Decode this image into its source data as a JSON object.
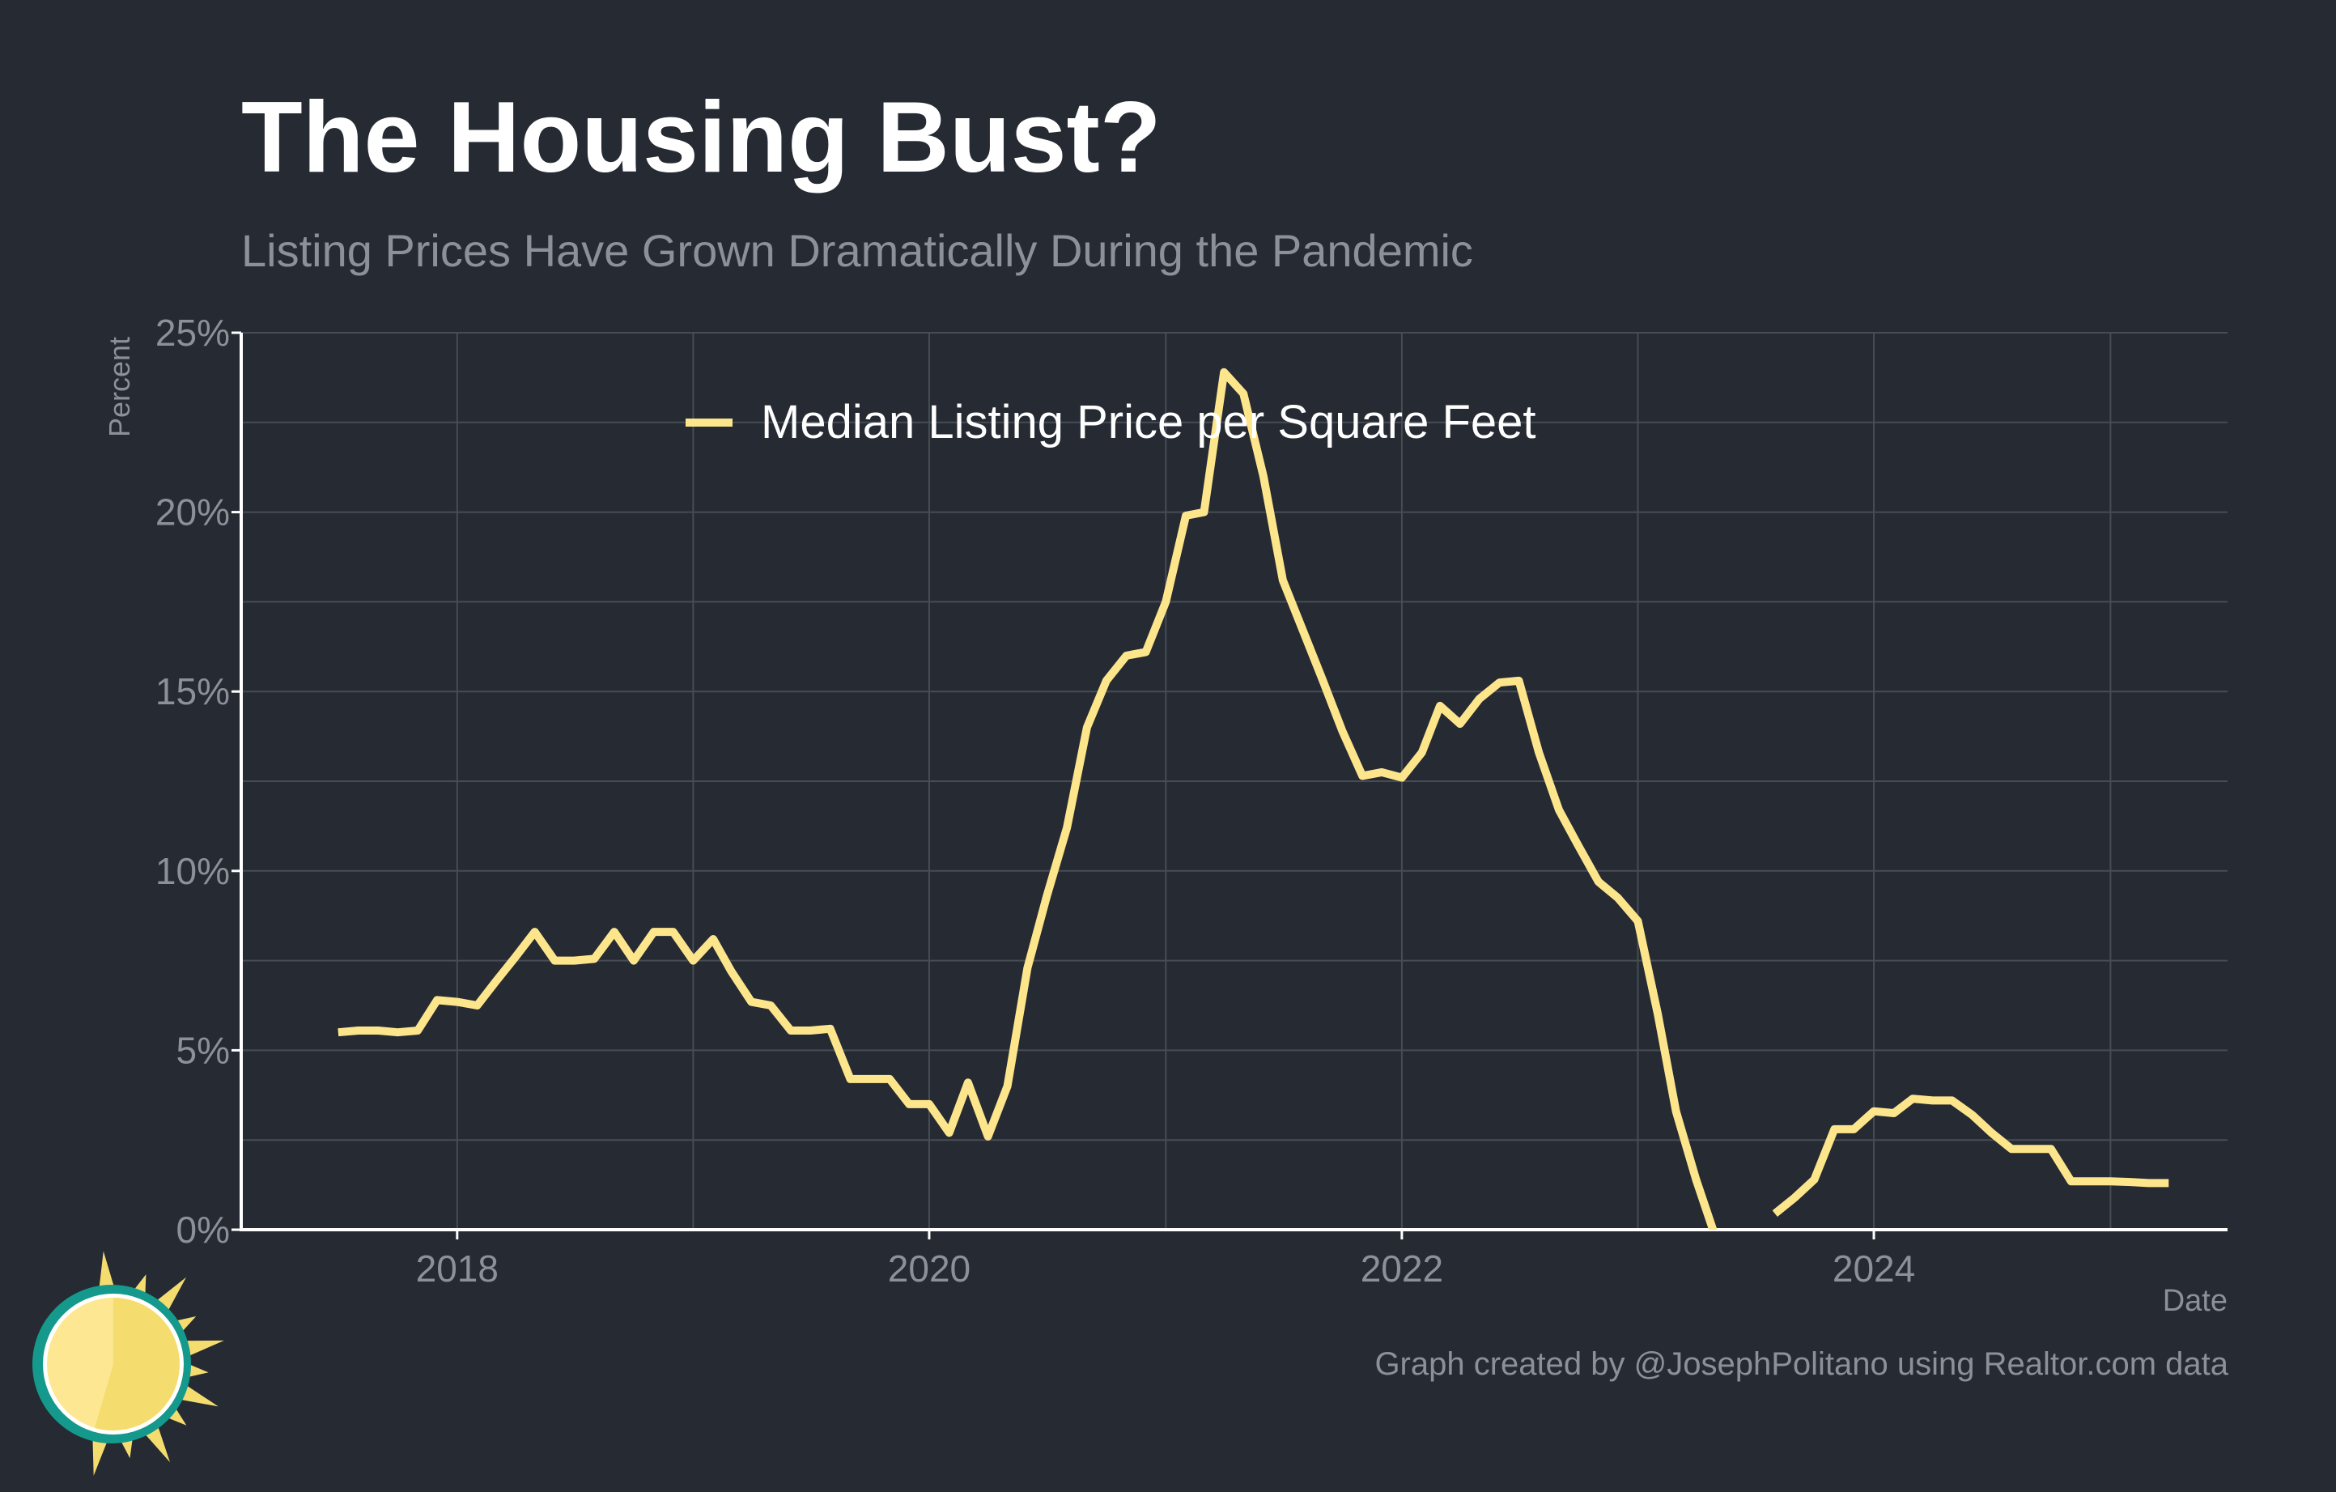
{
  "title": "The Housing Bust?",
  "subtitle": "Listing Prices Have Grown Dramatically During the Pandemic",
  "caption": "Graph created by @JosephPolitano using Realtor.com data",
  "colors": {
    "background": "#252a33",
    "line": "#fde58c",
    "grid": "#474c55",
    "axis": "#ffffff",
    "muted_text": "#8c9099",
    "logo_teal": "#14998c",
    "logo_sun": "#f5dc6e",
    "logo_sun_light": "#fde792"
  },
  "logo_icon": "sun-logo-icon",
  "chart_data": {
    "type": "line",
    "title": "The Housing Bust?",
    "subtitle": "Listing Prices Have Grown Dramatically During the Pandemic",
    "xlabel": "Date",
    "ylabel": "Percent",
    "xlim": [
      "2017-02-01",
      "2025-07-01"
    ],
    "ylim": [
      0,
      25
    ],
    "y_ticks": [
      0,
      5,
      10,
      15,
      20,
      25
    ],
    "y_tick_labels": [
      "0%",
      "5%",
      "10%",
      "15%",
      "20%",
      "25%"
    ],
    "x_ticks": [
      "2018-01-01",
      "2020-01-01",
      "2022-01-01",
      "2024-01-01"
    ],
    "x_tick_labels": [
      "2018",
      "2020",
      "2022",
      "2024"
    ],
    "grid": true,
    "legend_position": "top-center",
    "series": [
      {
        "name": "Median Listing Price per Square Feet",
        "color": "#fde58c",
        "points": [
          [
            "2017-07-01",
            5.5
          ],
          [
            "2017-08-01",
            5.55
          ],
          [
            "2017-09-01",
            5.55
          ],
          [
            "2017-10-01",
            5.5
          ],
          [
            "2017-11-01",
            5.55
          ],
          [
            "2017-12-01",
            6.4
          ],
          [
            "2018-01-01",
            6.35
          ],
          [
            "2018-02-01",
            6.25
          ],
          [
            "2018-03-01",
            6.9
          ],
          [
            "2018-04-01",
            7.6
          ],
          [
            "2018-05-01",
            8.3
          ],
          [
            "2018-06-01",
            7.5
          ],
          [
            "2018-07-01",
            7.5
          ],
          [
            "2018-08-01",
            7.55
          ],
          [
            "2018-09-01",
            8.3
          ],
          [
            "2018-10-01",
            7.5
          ],
          [
            "2018-11-01",
            8.3
          ],
          [
            "2018-12-01",
            8.3
          ],
          [
            "2019-01-01",
            7.5
          ],
          [
            "2019-02-01",
            8.1
          ],
          [
            "2019-03-01",
            7.2
          ],
          [
            "2019-04-01",
            6.35
          ],
          [
            "2019-05-01",
            6.25
          ],
          [
            "2019-06-01",
            5.55
          ],
          [
            "2019-07-01",
            5.55
          ],
          [
            "2019-08-01",
            5.6
          ],
          [
            "2019-09-01",
            4.2
          ],
          [
            "2019-10-01",
            4.2
          ],
          [
            "2019-11-01",
            4.2
          ],
          [
            "2019-12-01",
            3.5
          ],
          [
            "2020-01-01",
            3.5
          ],
          [
            "2020-02-01",
            2.7
          ],
          [
            "2020-03-01",
            4.1
          ],
          [
            "2020-04-01",
            2.6
          ],
          [
            "2020-05-01",
            4.0
          ],
          [
            "2020-06-01",
            7.3
          ],
          [
            "2020-07-01",
            9.3
          ],
          [
            "2020-08-01",
            11.2
          ],
          [
            "2020-09-01",
            14.0
          ],
          [
            "2020-10-01",
            15.3
          ],
          [
            "2020-11-01",
            16.0
          ],
          [
            "2020-12-01",
            16.1
          ],
          [
            "2021-01-01",
            17.5
          ],
          [
            "2021-02-01",
            19.9
          ],
          [
            "2021-03-01",
            20.0
          ],
          [
            "2021-04-01",
            23.9
          ],
          [
            "2021-05-01",
            23.3
          ],
          [
            "2021-06-01",
            21.0
          ],
          [
            "2021-07-01",
            18.1
          ],
          [
            "2021-08-01",
            16.7
          ],
          [
            "2021-09-01",
            15.3
          ],
          [
            "2021-10-01",
            13.9
          ],
          [
            "2021-11-01",
            12.65
          ],
          [
            "2021-12-01",
            12.75
          ],
          [
            "2022-01-01",
            12.6
          ],
          [
            "2022-02-01",
            13.3
          ],
          [
            "2022-03-01",
            14.6
          ],
          [
            "2022-04-01",
            14.1
          ],
          [
            "2022-05-01",
            14.8
          ],
          [
            "2022-06-01",
            15.25
          ],
          [
            "2022-07-01",
            15.3
          ],
          [
            "2022-08-01",
            13.3
          ],
          [
            "2022-09-01",
            11.7
          ],
          [
            "2022-10-01",
            10.7
          ],
          [
            "2022-11-01",
            9.7
          ],
          [
            "2022-12-01",
            9.25
          ],
          [
            "2023-01-01",
            8.6
          ],
          [
            "2023-02-01",
            6.0
          ],
          [
            "2023-03-01",
            3.3
          ],
          [
            "2023-04-01",
            1.4
          ],
          [
            "2023-05-01",
            -0.2
          ],
          [
            "2023-06-01",
            null
          ],
          [
            "2023-07-01",
            null
          ],
          [
            "2023-08-01",
            0.45
          ],
          [
            "2023-09-01",
            0.9
          ],
          [
            "2023-10-01",
            1.4
          ],
          [
            "2023-11-01",
            2.8
          ],
          [
            "2023-12-01",
            2.8
          ],
          [
            "2024-01-01",
            3.3
          ],
          [
            "2024-02-01",
            3.25
          ],
          [
            "2024-03-01",
            3.65
          ],
          [
            "2024-04-01",
            3.6
          ],
          [
            "2024-05-01",
            3.6
          ],
          [
            "2024-06-01",
            3.2
          ],
          [
            "2024-07-01",
            2.7
          ],
          [
            "2024-08-01",
            2.25
          ],
          [
            "2024-09-01",
            2.25
          ],
          [
            "2024-10-01",
            2.25
          ],
          [
            "2024-11-01",
            1.35
          ],
          [
            "2024-12-01",
            1.35
          ],
          [
            "2025-01-01",
            1.35
          ],
          [
            "2025-02-01",
            1.33
          ],
          [
            "2025-03-01",
            1.3
          ],
          [
            "2025-04-01",
            1.3
          ]
        ]
      }
    ]
  }
}
